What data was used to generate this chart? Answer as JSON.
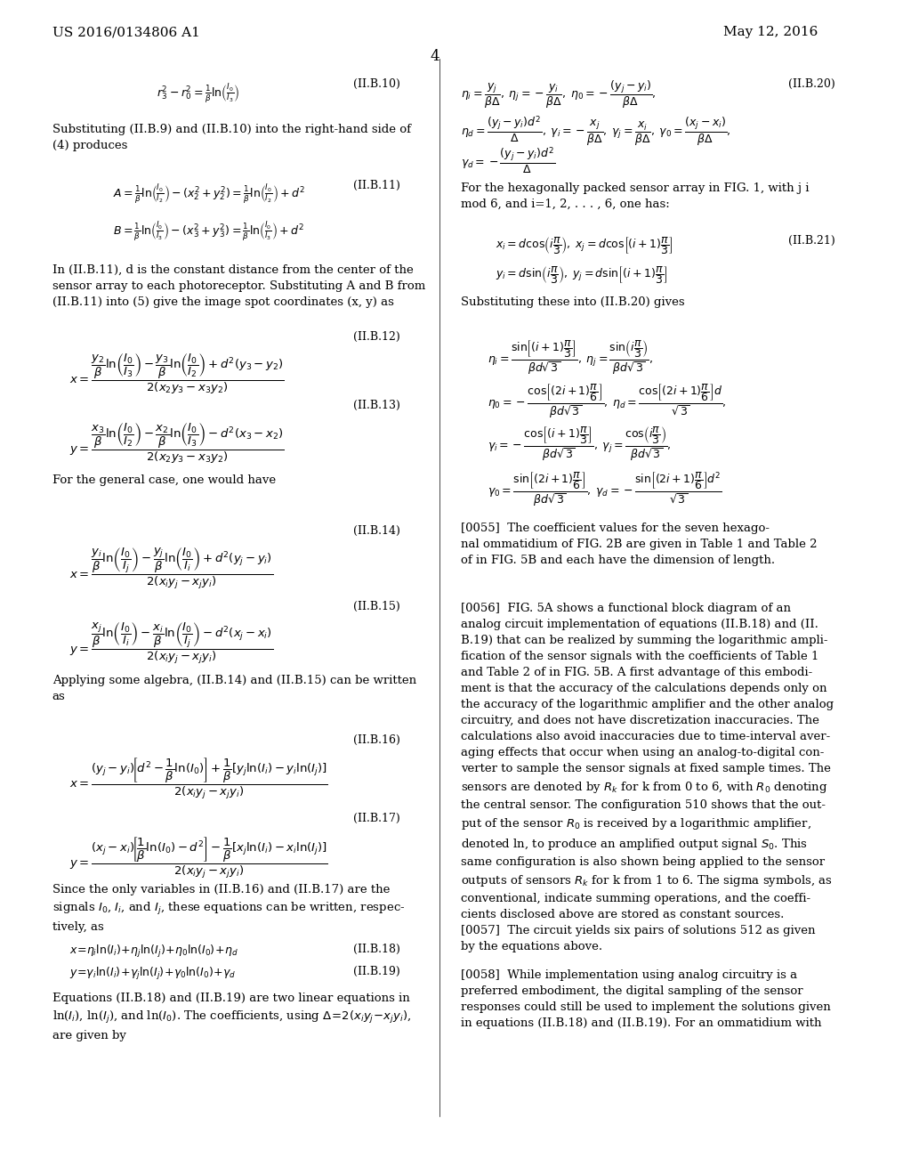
{
  "background_color": "#ffffff",
  "header_left": "US 2016/0134806 A1",
  "header_right": "May 12, 2016",
  "page_number": "4",
  "font_size_header": 11,
  "font_size_body": 9.5,
  "font_size_eq": 9.0
}
